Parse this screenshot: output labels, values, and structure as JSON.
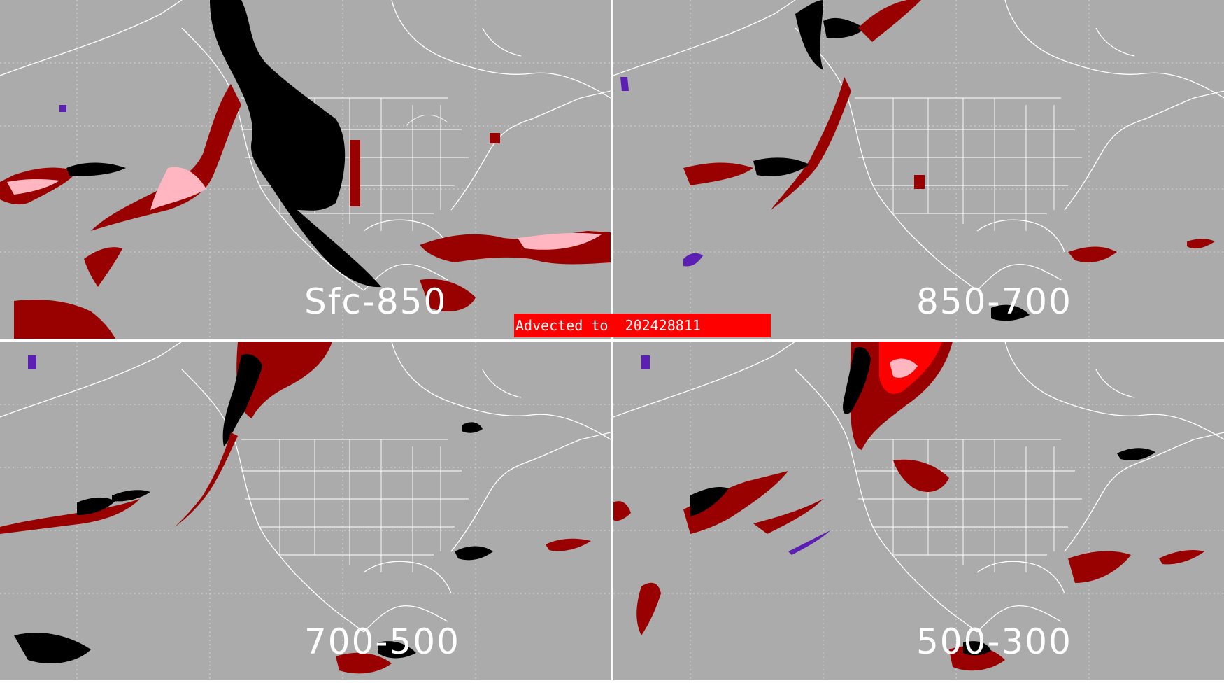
{
  "banner": {
    "text": "Advected to  202428811"
  },
  "panels": [
    {
      "id": "sfc-850",
      "label": "Sfc-850"
    },
    {
      "id": "850-700",
      "label": "850-700"
    },
    {
      "id": "700-500",
      "label": "700-500"
    },
    {
      "id": "500-300",
      "label": "500-300"
    }
  ],
  "colors": {
    "background": "#ababab",
    "coastlines": "#ffffff",
    "dark_red": "#990000",
    "pink": "#ffb6c1",
    "red": "#ff0000",
    "black": "#000000",
    "purple": "#5c1fb3"
  }
}
